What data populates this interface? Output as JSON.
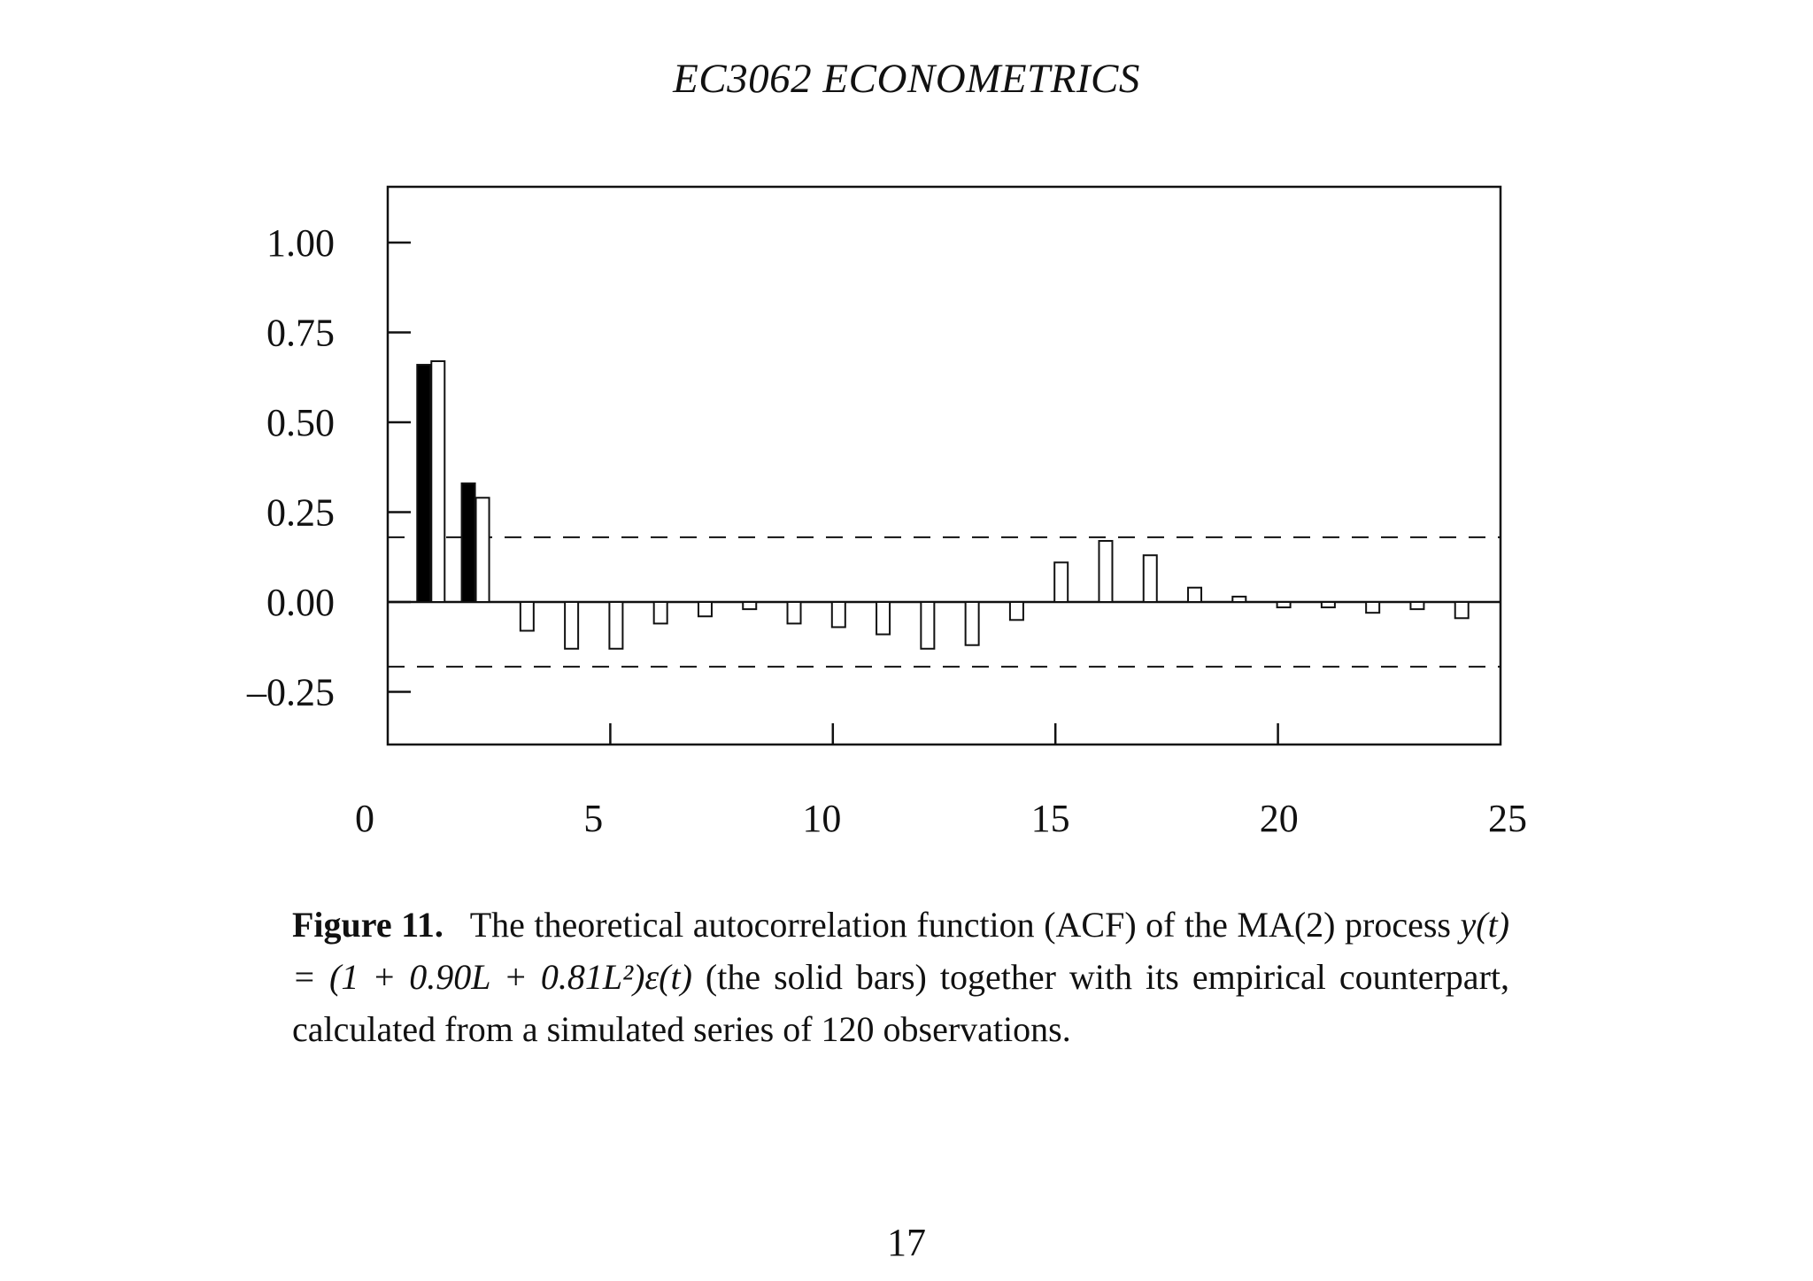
{
  "page": {
    "running_header": "EC3062 ECONOMETRICS",
    "page_number": "17"
  },
  "caption": {
    "label": "Figure 11.",
    "text_1": "The theoretical autocorrelation function (ACF) of the MA(2) process",
    "formula": "y(t) = (1 + 0.90L + 0.81L²)ε(t)",
    "text_2": "(the solid bars) together with its empirical counterpart, calculated from a simulated series of 120 observations."
  },
  "chart_data": {
    "type": "bar",
    "title": "",
    "xlabel": "",
    "ylabel": "",
    "xlim": [
      0,
      25
    ],
    "ylim": [
      -0.4,
      1.15
    ],
    "x_ticks": [
      0,
      5,
      10,
      15,
      20,
      25
    ],
    "x_tick_labels": [
      "0",
      "5",
      "10",
      "15",
      "20",
      "25"
    ],
    "y_ticks": [
      1.0,
      0.75,
      0.5,
      0.25,
      0.0,
      -0.25
    ],
    "y_tick_labels": [
      "1.00",
      "0.75",
      "0.50",
      "0.25",
      "0.00",
      "–0.25"
    ],
    "grid": false,
    "confidence_bounds": [
      0.18,
      -0.18
    ],
    "series": [
      {
        "style": "solid",
        "color": "#000000",
        "lags": [
          1,
          2
        ],
        "values": [
          0.66,
          0.33
        ]
      },
      {
        "style": "hollow",
        "color": "#ffffff",
        "lags": [
          1,
          2,
          3,
          4,
          5,
          6,
          7,
          8,
          9,
          10,
          11,
          12,
          13,
          14,
          15,
          16,
          17,
          18,
          19,
          20,
          21,
          22,
          23,
          24,
          25
        ],
        "values": [
          0.67,
          0.29,
          -0.08,
          -0.13,
          -0.13,
          -0.06,
          -0.04,
          -0.02,
          -0.06,
          -0.07,
          -0.09,
          -0.13,
          -0.12,
          -0.05,
          0.11,
          0.17,
          0.13,
          0.04,
          0.015,
          -0.015,
          -0.015,
          -0.03,
          -0.02,
          -0.045,
          0.0
        ]
      }
    ]
  }
}
